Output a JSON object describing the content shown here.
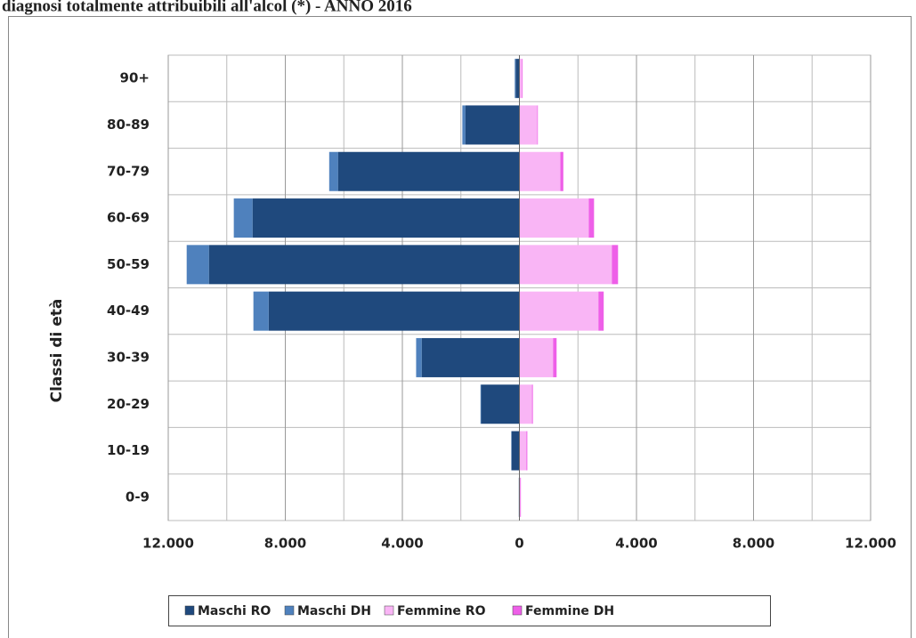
{
  "chart_data": {
    "type": "pyramid",
    "title": "diagnosi totalmente attribuibili all'alcol (*) - ANNO 2016",
    "ylabel": "Classi di età",
    "categories": [
      "0-9",
      "10-19",
      "20-29",
      "30-39",
      "40-49",
      "50-59",
      "60-69",
      "70-79",
      "80-89",
      "90+"
    ],
    "series": [
      {
        "name": "Maschi RO",
        "color": "#1f497d",
        "values": [
          -20,
          -270,
          -1310,
          -3340,
          -8570,
          -10610,
          -9120,
          -6200,
          -1850,
          -130
        ]
      },
      {
        "name": "Maschi DH",
        "color": "#4f81bd",
        "values": [
          0,
          -10,
          -20,
          -190,
          -520,
          -760,
          -640,
          -300,
          -100,
          -30
        ]
      },
      {
        "name": "Femmine RO",
        "color": "#f9b5f5",
        "values": [
          30,
          240,
          430,
          1150,
          2700,
          3160,
          2370,
          1400,
          610,
          90
        ]
      },
      {
        "name": "Femmine DH",
        "color": "#ee5fe8",
        "values": [
          20,
          30,
          30,
          120,
          180,
          210,
          180,
          100,
          20,
          20
        ]
      }
    ],
    "xlim": [
      -12000,
      12000
    ],
    "xticks": [
      {
        "value": -12000,
        "label": "12.000"
      },
      {
        "value": -8000,
        "label": "8.000"
      },
      {
        "value": -4000,
        "label": "4.000"
      },
      0,
      {
        "value": 4000,
        "label": "4.000"
      },
      {
        "value": 8000,
        "label": "8.000"
      },
      {
        "value": 12000,
        "label": "12.000"
      }
    ],
    "xgrid": [
      -10000,
      -6000,
      -2000,
      2000,
      6000,
      10000
    ],
    "grid": true,
    "legend": "bottom"
  }
}
